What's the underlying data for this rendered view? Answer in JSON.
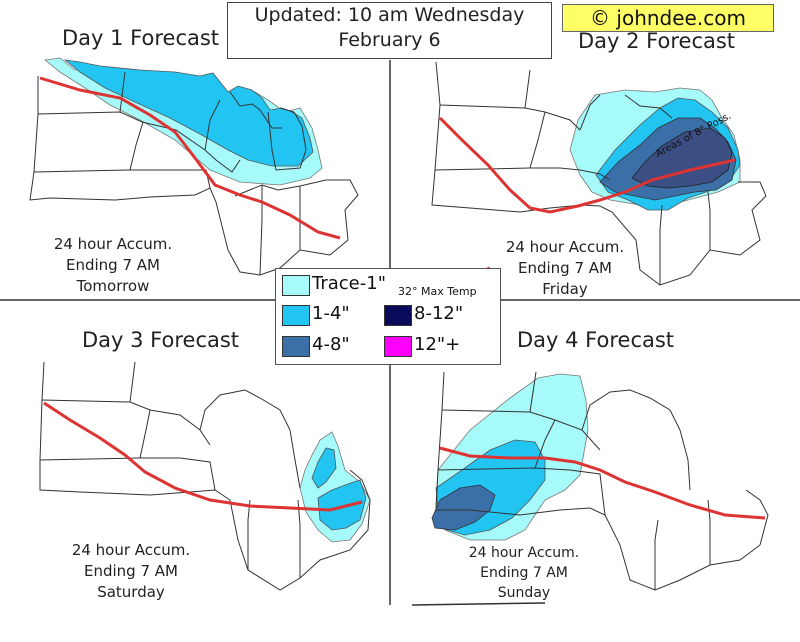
{
  "header": {
    "updated_line1": "Updated: 10 am Wednesday",
    "updated_line2": "February 6",
    "brand": "© johndee.com"
  },
  "panels": [
    {
      "title": "Day 1 Forecast",
      "accum_line1": "24 hour Accum.",
      "accum_line2": "Ending 7 AM",
      "accum_line3": "Tomorrow"
    },
    {
      "title": "Day 2 Forecast",
      "accum_line1": "24 hour Accum.",
      "accum_line2": "Ending 7 AM",
      "accum_line3": "Friday",
      "annotation": "Areas of 8\" Poss."
    },
    {
      "title": "Day 3 Forecast",
      "accum_line1": "24 hour Accum.",
      "accum_line2": "Ending 7 AM",
      "accum_line3": "Saturday"
    },
    {
      "title": "Day 4 Forecast",
      "accum_line1": "24 hour Accum.",
      "accum_line2": "Ending 7 AM",
      "accum_line3": "Sunday"
    }
  ],
  "legend": {
    "items": [
      {
        "label": "Trace-1\"",
        "color": "#a6fafa"
      },
      {
        "label": "1-4\"",
        "color": "#22c4f2"
      },
      {
        "label": "4-8\"",
        "color": "#3a6fa8"
      },
      {
        "label": "8-12\"",
        "color": "#0a0a5a"
      },
      {
        "label": "12\"+",
        "color": "#ff00ff"
      }
    ],
    "temp_label": "32° Max Temp",
    "temp_color": "#dd3333"
  }
}
